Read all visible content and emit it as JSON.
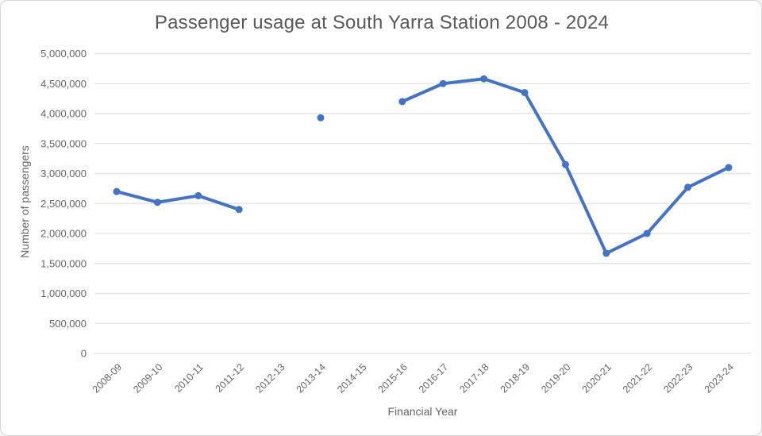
{
  "chart_data": {
    "type": "line",
    "title": "Passenger usage at South Yarra Station 2008 - 2024",
    "xlabel": "Financial Year",
    "ylabel": "Number of passengers",
    "categories": [
      "2008-09",
      "2009-10",
      "2010-11",
      "2011-12",
      "2012-13",
      "2013-14",
      "2014-15",
      "2015-16",
      "2016-17",
      "2017-18",
      "2018-19",
      "2019-20",
      "2020-21",
      "2021-22",
      "2022-23",
      "2023-24"
    ],
    "series": [
      {
        "name": "Number of passengers",
        "values": [
          2700000,
          2520000,
          2630000,
          2400000,
          null,
          3930000,
          null,
          4200000,
          4500000,
          4580000,
          4350000,
          3150000,
          1670000,
          2000000,
          2770000,
          3100000
        ]
      }
    ],
    "ylim": [
      0,
      5000000
    ],
    "ytick_step": 500000,
    "grid": true,
    "legend": "none",
    "missing_years": [
      "2012-13",
      "2014-15"
    ]
  },
  "colors": {
    "line": "#4472C4",
    "grid": "#e6e6e6",
    "tick_text": "#666666",
    "title_text": "#595959",
    "background": "#ffffff",
    "border": "#d6d6d6"
  }
}
